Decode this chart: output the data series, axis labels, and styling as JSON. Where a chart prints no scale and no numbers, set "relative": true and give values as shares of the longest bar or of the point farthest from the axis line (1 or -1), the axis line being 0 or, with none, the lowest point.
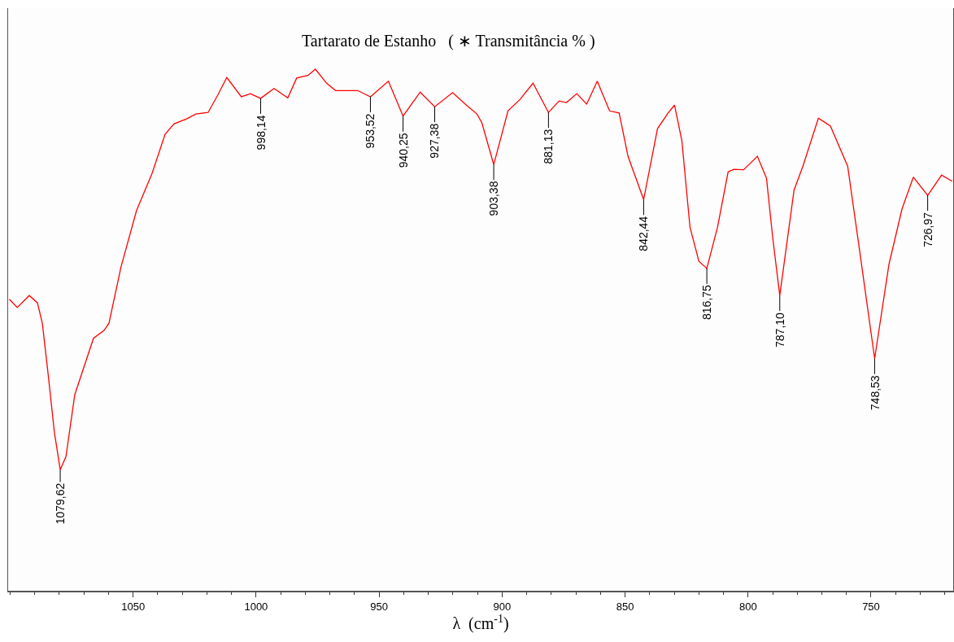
{
  "chart_data": {
    "type": "line",
    "relative": true,
    "title": "Tartarato de Estanho   ( ∗ Transmitância % )",
    "xlabel": "λ  (cm$^{-1}$)",
    "xlim": [
      1100.8,
      716.6
    ],
    "xticks": [
      1050,
      1000,
      950,
      900,
      850,
      800,
      750
    ],
    "marker": "none",
    "line_style": "solid",
    "x": [
      1100.3,
      1097.1,
      1092.2,
      1088.9,
      1086.9,
      1084.6,
      1082.0,
      1079.62,
      1077.3,
      1073.7,
      1066.1,
      1061.8,
      1059.8,
      1054.9,
      1048.6,
      1042.3,
      1037.0,
      1033.4,
      1028.1,
      1024.5,
      1019.5,
      1015.6,
      1011.9,
      1006.0,
      1002.3,
      998.14,
      992.7,
      987.1,
      983.5,
      978.9,
      975.9,
      971.3,
      967.7,
      958.7,
      953.52,
      946.2,
      940.25,
      933.3,
      927.38,
      920.1,
      914.5,
      910.2,
      908.2,
      903.38,
      897.6,
      892.7,
      887.4,
      881.13,
      876.8,
      873.8,
      869.6,
      865.6,
      861.3,
      856.3,
      852.4,
      848.8,
      842.44,
      836.8,
      832.5,
      829.9,
      826.9,
      823.6,
      820.0,
      816.75,
      812.4,
      808.1,
      805.8,
      801.8,
      796.2,
      792.5,
      789.9,
      787.1,
      781.3,
      777.7,
      771.4,
      766.5,
      759.5,
      754.9,
      748.53,
      742.7,
      737.4,
      732.8,
      726.97,
      721.3,
      717.0
    ],
    "series": [
      {
        "color": "#ff0000",
        "values": [
          0.559,
          0.543,
          0.566,
          0.552,
          0.513,
          0.418,
          0.304,
          0.232,
          0.257,
          0.376,
          0.484,
          0.499,
          0.513,
          0.621,
          0.729,
          0.8,
          0.875,
          0.895,
          0.905,
          0.914,
          0.917,
          0.95,
          0.984,
          0.947,
          0.953,
          0.944,
          0.963,
          0.945,
          0.983,
          0.988,
          1,
          0.973,
          0.959,
          0.959,
          0.947,
          0.977,
          0.91,
          0.956,
          0.928,
          0.955,
          0.931,
          0.914,
          0.897,
          0.817,
          0.92,
          0.942,
          0.973,
          0.917,
          0.939,
          0.936,
          0.953,
          0.933,
          0.977,
          0.92,
          0.916,
          0.833,
          0.75,
          0.886,
          0.916,
          0.931,
          0.863,
          0.697,
          0.632,
          0.618,
          0.697,
          0.803,
          0.808,
          0.807,
          0.833,
          0.791,
          0.674,
          0.566,
          0.768,
          0.814,
          0.906,
          0.891,
          0.814,
          0.661,
          0.445,
          0.626,
          0.732,
          0.793,
          0.758,
          0.797,
          0.785
        ]
      }
    ],
    "annotations": [
      {
        "text": "1079,62",
        "x": 1079.62,
        "y": 0.232
      },
      {
        "text": "998,14",
        "x": 998.14,
        "y": 0.944
      },
      {
        "text": "953,52",
        "x": 953.52,
        "y": 0.947
      },
      {
        "text": "940,25",
        "x": 940.25,
        "y": 0.91
      },
      {
        "text": "927,38",
        "x": 927.38,
        "y": 0.928
      },
      {
        "text": "903,38",
        "x": 903.38,
        "y": 0.817
      },
      {
        "text": "881,13",
        "x": 881.13,
        "y": 0.917
      },
      {
        "text": "842,44",
        "x": 842.44,
        "y": 0.75
      },
      {
        "text": "816,75",
        "x": 816.75,
        "y": 0.618
      },
      {
        "text": "787,10",
        "x": 787.1,
        "y": 0.566
      },
      {
        "text": "748,53",
        "x": 748.53,
        "y": 0.445
      },
      {
        "text": "726,97",
        "x": 726.97,
        "y": 0.758
      }
    ]
  }
}
